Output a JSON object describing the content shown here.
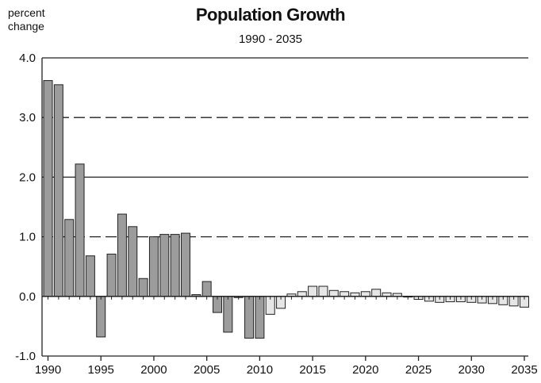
{
  "chart_data": {
    "type": "bar",
    "title": "Population Growth",
    "subtitle": "1990 - 2035",
    "ylabel": "percent change",
    "xlabel": "",
    "ylim": [
      -1.0,
      4.0
    ],
    "y_ticks": [
      "4.0",
      "3.0",
      "2.0",
      "1.0",
      "0.0",
      "-1.0"
    ],
    "x_ticks": [
      "1990",
      "1995",
      "2000",
      "2005",
      "2010",
      "2015",
      "2020",
      "2025",
      "2030",
      "2035"
    ],
    "grid": true,
    "colors": {
      "historical": "#9c9c9c",
      "projected": "#e6e6e6",
      "outline": "#222222"
    },
    "series": [
      {
        "x": [
          1990,
          1991,
          1992,
          1993,
          1994,
          1995,
          1996,
          1997,
          1998,
          1999,
          2000,
          2001,
          2002,
          2003,
          2004,
          2005,
          2006,
          2007,
          2008,
          2009,
          2010
        ],
        "values": [
          3.62,
          3.55,
          1.29,
          2.22,
          0.68,
          -0.68,
          0.71,
          1.38,
          1.17,
          0.3,
          1.0,
          1.04,
          1.04,
          1.06,
          0.03,
          0.25,
          -0.27,
          -0.6,
          -0.02,
          -0.7,
          -0.7
        ]
      },
      {
        "x": [
          2011,
          2012,
          2013,
          2014,
          2015,
          2016,
          2017,
          2018,
          2019,
          2020,
          2021,
          2022,
          2023,
          2024,
          2025,
          2026,
          2027,
          2028,
          2029,
          2030,
          2031,
          2032,
          2033,
          2034,
          2035
        ],
        "values": [
          -0.3,
          -0.2,
          0.04,
          0.08,
          0.17,
          0.17,
          0.1,
          0.08,
          0.06,
          0.08,
          0.12,
          0.06,
          0.05,
          0.0,
          -0.05,
          -0.08,
          -0.1,
          -0.09,
          -0.09,
          -0.1,
          -0.11,
          -0.12,
          -0.14,
          -0.16,
          -0.18
        ]
      }
    ]
  }
}
